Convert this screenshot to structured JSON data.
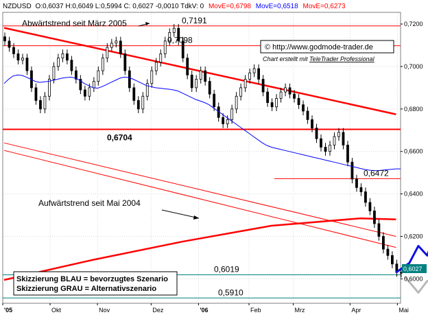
{
  "header": {
    "symbol": "NZDUSD",
    "ohlc": "O:0,6037 H:0,6049 L:0,5994 C: 0,6027 -0,0010 TdkV: 0",
    "ma1": "MovE=0,6798",
    "ma2": "MovE=0,6518",
    "ma3": "MovE=0,6273",
    "colors": {
      "ma1": "#ff0000",
      "ma2": "#0000ff",
      "ma3": "#ff0000"
    }
  },
  "watermark": {
    "url": "© http://www.godmode-trader.de",
    "credit_prefix": "Chart erstellt mit ",
    "credit_link": "TeleTrader Professional"
  },
  "legend": {
    "line1": "Skizzierung BLAU = bevorzugtes Szenario",
    "line2": "Skizzierung GRAU = Alternativszenario"
  },
  "annotations": {
    "downtrend": "Abwärtstrend seit März 2005",
    "uptrend": "Aufwärtstrend seit Mai 2004"
  },
  "current_price_label": "0,6027",
  "chart_data": {
    "type": "candlestick",
    "yaxis": {
      "ticks": [
        "0,7200",
        "0,7000",
        "0,6800",
        "0,6600",
        "0,6400",
        "0,6200",
        "0,6000"
      ],
      "values": [
        0.72,
        0.7,
        0.68,
        0.66,
        0.64,
        0.62,
        0.6
      ],
      "ylim": [
        0.5885,
        0.7255
      ]
    },
    "xaxis": {
      "ticks": [
        "'05",
        "Okt",
        "Nov",
        "Dez",
        "'06",
        "Feb",
        "Mrz",
        "Apr",
        "Mai"
      ]
    },
    "levels": [
      {
        "value": 0.7191,
        "label": "0,7191",
        "color": "#ff0000"
      },
      {
        "value": 0.7098,
        "label": "0,7098",
        "color": "#ff0000"
      },
      {
        "value": 0.6704,
        "label": "0,6704",
        "color": "#ff0000",
        "bold": true
      },
      {
        "value": 0.6472,
        "label": "0,6472",
        "color": "#ff0000"
      },
      {
        "value": 0.6019,
        "label": "0,6019",
        "color": "#008080"
      },
      {
        "value": 0.591,
        "label": "0,5910",
        "color": "#008080"
      }
    ],
    "close": [
      0.712,
      0.709,
      0.706,
      0.703,
      0.704,
      0.698,
      0.69,
      0.684,
      0.68,
      0.686,
      0.694,
      0.7,
      0.704,
      0.706,
      0.703,
      0.698,
      0.694,
      0.689,
      0.686,
      0.69,
      0.693,
      0.698,
      0.704,
      0.709,
      0.711,
      0.712,
      0.706,
      0.698,
      0.69,
      0.684,
      0.68,
      0.686,
      0.692,
      0.698,
      0.702,
      0.706,
      0.712,
      0.716,
      0.718,
      0.712,
      0.704,
      0.696,
      0.69,
      0.694,
      0.698,
      0.693,
      0.687,
      0.681,
      0.676,
      0.673,
      0.675,
      0.68,
      0.686,
      0.69,
      0.694,
      0.697,
      0.699,
      0.694,
      0.688,
      0.683,
      0.681,
      0.685,
      0.688,
      0.69,
      0.687,
      0.685,
      0.682,
      0.679,
      0.675,
      0.671,
      0.666,
      0.662,
      0.66,
      0.663,
      0.667,
      0.669,
      0.663,
      0.655,
      0.647,
      0.643,
      0.641,
      0.636,
      0.632,
      0.626,
      0.62,
      0.614,
      0.611,
      0.607,
      0.603,
      0.6027
    ],
    "ma_blue": [
      0.692,
      0.694,
      0.6955,
      0.696,
      0.6958,
      0.695,
      0.694,
      0.693,
      0.6925,
      0.6928,
      0.693,
      0.6935,
      0.694,
      0.6945,
      0.6948,
      0.695,
      0.6945,
      0.6935,
      0.692,
      0.691,
      0.69,
      0.6898,
      0.6905,
      0.6915,
      0.6925,
      0.6935,
      0.6945,
      0.695,
      0.6948,
      0.694,
      0.693,
      0.692,
      0.691,
      0.6905,
      0.69,
      0.6898,
      0.6895,
      0.6893,
      0.689,
      0.6885,
      0.6875,
      0.6865,
      0.6855,
      0.6845,
      0.6838,
      0.683,
      0.682,
      0.6805,
      0.679,
      0.6775,
      0.676,
      0.6745,
      0.673,
      0.6715,
      0.67,
      0.6685,
      0.667,
      0.6655,
      0.664,
      0.6628,
      0.662,
      0.6615,
      0.661,
      0.6605,
      0.66,
      0.6595,
      0.659,
      0.6585,
      0.658,
      0.6575,
      0.657,
      0.6565,
      0.656,
      0.6555,
      0.655,
      0.6545,
      0.654,
      0.6535,
      0.653,
      0.6525,
      0.652,
      0.6515,
      0.6512,
      0.651,
      0.651,
      0.6512,
      0.6514,
      0.6516,
      0.6518,
      0.6518
    ],
    "trend_down": [
      [
        0,
        0.7182
      ],
      [
        88,
        0.6775
      ]
    ],
    "channel_top": [
      [
        0,
        0.664
      ],
      [
        88,
        0.62
      ]
    ],
    "channel_bottom": [
      [
        0,
        0.6605
      ],
      [
        88,
        0.6148
      ]
    ],
    "trend_up": [
      [
        0,
        0.5995
      ],
      [
        20,
        0.609
      ],
      [
        40,
        0.6175
      ],
      [
        60,
        0.625
      ],
      [
        80,
        0.6285
      ],
      [
        88,
        0.628
      ]
    ],
    "scenario_blue": [
      [
        88,
        0.603
      ],
      [
        91,
        0.6075
      ],
      [
        93,
        0.6155
      ],
      [
        95,
        0.611
      ],
      [
        98,
        0.6275
      ],
      [
        100,
        0.622
      ]
    ],
    "scenario_grey": [
      [
        90,
        0.601
      ],
      [
        93,
        0.5935
      ],
      [
        95,
        0.599
      ],
      [
        98,
        0.596
      ],
      [
        103,
        0.6185
      ]
    ]
  }
}
